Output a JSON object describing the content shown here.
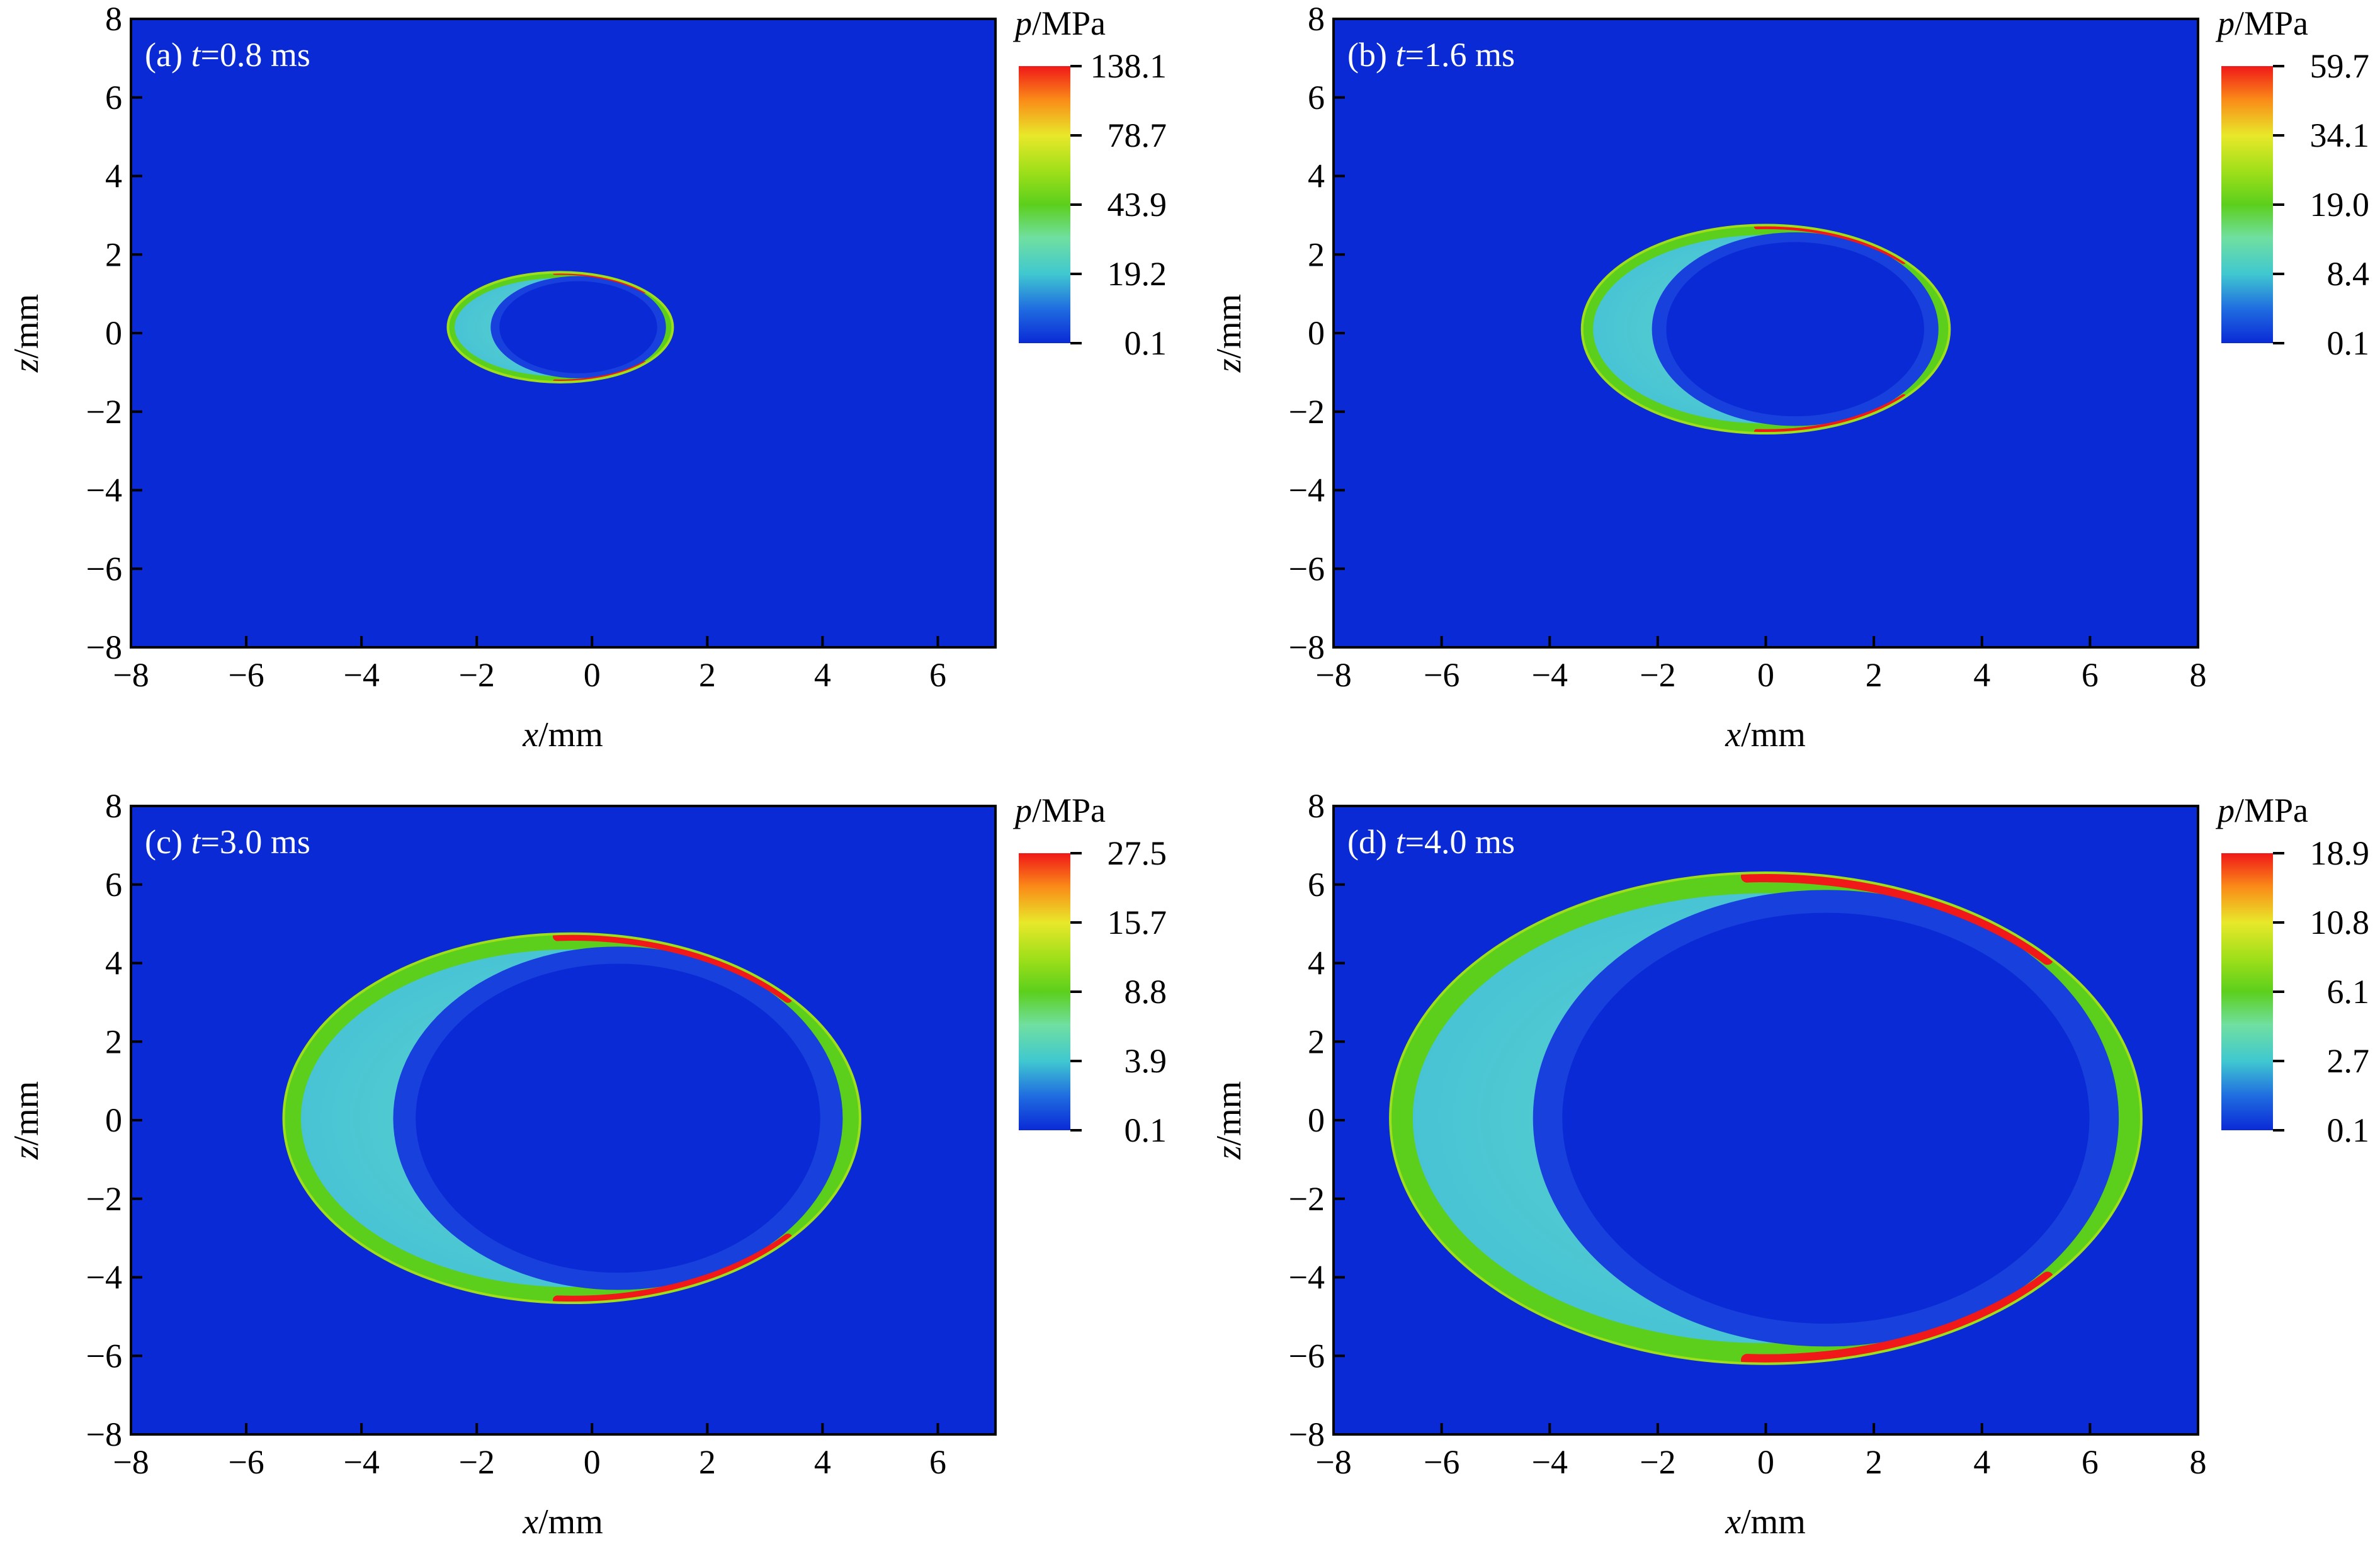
{
  "colors": {
    "background_field": "#0a2ad6",
    "colormap": [
      "#0a2ad6",
      "#1f6ae0",
      "#40c8d0",
      "#70dfa0",
      "#5ccf1c",
      "#9fdf1a",
      "#e8e82a",
      "#fa8a18",
      "#f01818"
    ]
  },
  "chart_data": [
    {
      "type": "heatmap",
      "panel_label": "(a) ",
      "time_var": "t",
      "time_text": "=0.8 ms",
      "xlabel_var": "x",
      "xlabel_unit": "/mm",
      "ylabel_var": "z",
      "ylabel_unit": "/mm",
      "xlim": [
        -8,
        7
      ],
      "ylim": [
        -8,
        8
      ],
      "xticks": [
        -8,
        -6,
        -4,
        -2,
        0,
        2,
        4,
        6
      ],
      "yticks": [
        -8,
        -6,
        -4,
        -2,
        0,
        2,
        4,
        6,
        8
      ],
      "colorbar": {
        "title_var": "p",
        "title_unit": "/MPa",
        "ticks": [
          "138.1",
          "78.7",
          "43.9",
          "19.2",
          "0.1"
        ]
      },
      "shape": {
        "center": [
          -0.55,
          0.15
        ],
        "half_width": 1.95,
        "half_height": 1.4
      }
    },
    {
      "type": "heatmap",
      "panel_label": "(b) ",
      "time_var": "t",
      "time_text": "=1.6 ms",
      "xlabel_var": "x",
      "xlabel_unit": "/mm",
      "ylabel_var": "z",
      "ylabel_unit": "/mm",
      "xlim": [
        -8,
        8
      ],
      "ylim": [
        -8,
        8
      ],
      "xticks": [
        -8,
        -6,
        -4,
        -2,
        0,
        2,
        4,
        6,
        8
      ],
      "yticks": [
        -8,
        -6,
        -4,
        -2,
        0,
        2,
        4,
        6,
        8
      ],
      "colorbar": {
        "title_var": "p",
        "title_unit": "/MPa",
        "ticks": [
          "59.7",
          "34.1",
          "19.0",
          "8.4",
          "0.1"
        ]
      },
      "shape": {
        "center": [
          0.0,
          0.1
        ],
        "half_width": 3.4,
        "half_height": 2.65
      }
    },
    {
      "type": "heatmap",
      "panel_label": "(c) ",
      "time_var": "t",
      "time_text": "=3.0 ms",
      "xlabel_var": "x",
      "xlabel_unit": "/mm",
      "ylabel_var": "z",
      "ylabel_unit": "/mm",
      "xlim": [
        -8,
        7
      ],
      "ylim": [
        -8,
        8
      ],
      "xticks": [
        -8,
        -6,
        -4,
        -2,
        0,
        2,
        4,
        6
      ],
      "yticks": [
        -8,
        -6,
        -4,
        -2,
        0,
        2,
        4,
        6,
        8
      ],
      "colorbar": {
        "title_var": "p",
        "title_unit": "/MPa",
        "ticks": [
          "27.5",
          "15.7",
          "8.8",
          "3.9",
          "0.1"
        ]
      },
      "shape": {
        "center": [
          -0.35,
          0.05
        ],
        "half_width": 5.0,
        "half_height": 4.7
      }
    },
    {
      "type": "heatmap",
      "panel_label": "(d) ",
      "time_var": "t",
      "time_text": "=4.0 ms",
      "xlabel_var": "x",
      "xlabel_unit": "/mm",
      "ylabel_var": "z",
      "ylabel_unit": "/mm",
      "xlim": [
        -8,
        8
      ],
      "ylim": [
        -8,
        8
      ],
      "xticks": [
        -8,
        -6,
        -4,
        -2,
        0,
        2,
        4,
        6,
        8
      ],
      "yticks": [
        -8,
        -6,
        -4,
        -2,
        0,
        2,
        4,
        6,
        8
      ],
      "colorbar": {
        "title_var": "p",
        "title_unit": "/MPa",
        "ticks": [
          "18.9",
          "10.8",
          "6.1",
          "2.7",
          "0.1"
        ]
      },
      "shape": {
        "center": [
          0.0,
          0.05
        ],
        "half_width": 6.95,
        "half_height": 6.25
      }
    }
  ]
}
